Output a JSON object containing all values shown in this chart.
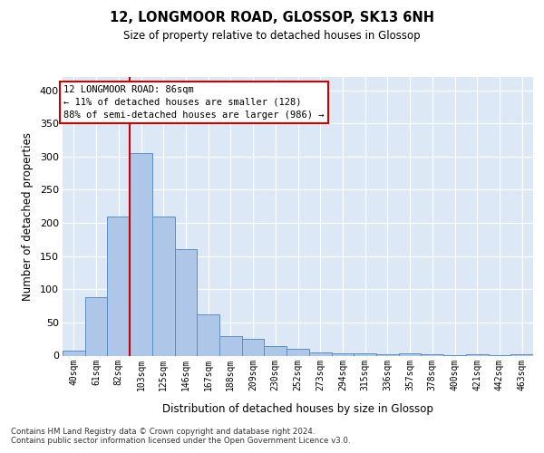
{
  "title1": "12, LONGMOOR ROAD, GLOSSOP, SK13 6NH",
  "title2": "Size of property relative to detached houses in Glossop",
  "xlabel": "Distribution of detached houses by size in Glossop",
  "ylabel": "Number of detached properties",
  "categories": [
    "40sqm",
    "61sqm",
    "82sqm",
    "103sqm",
    "125sqm",
    "146sqm",
    "167sqm",
    "188sqm",
    "209sqm",
    "230sqm",
    "252sqm",
    "273sqm",
    "294sqm",
    "315sqm",
    "336sqm",
    "357sqm",
    "378sqm",
    "400sqm",
    "421sqm",
    "442sqm",
    "463sqm"
  ],
  "values": [
    7,
    88,
    210,
    305,
    210,
    160,
    62,
    30,
    25,
    14,
    10,
    5,
    4,
    4,
    2,
    3,
    2,
    1,
    2,
    1,
    2
  ],
  "bar_color": "#aec6e8",
  "bar_edge_color": "#5a8fc2",
  "red_line_color": "#cc0000",
  "annotation_line1": "12 LONGMOOR ROAD: 86sqm",
  "annotation_line2": "← 11% of detached houses are smaller (128)",
  "annotation_line3": "88% of semi-detached houses are larger (986) →",
  "ylim": [
    0,
    420
  ],
  "yticks": [
    0,
    50,
    100,
    150,
    200,
    250,
    300,
    350,
    400
  ],
  "footnote1": "Contains HM Land Registry data © Crown copyright and database right 2024.",
  "footnote2": "Contains public sector information licensed under the Open Government Licence v3.0."
}
